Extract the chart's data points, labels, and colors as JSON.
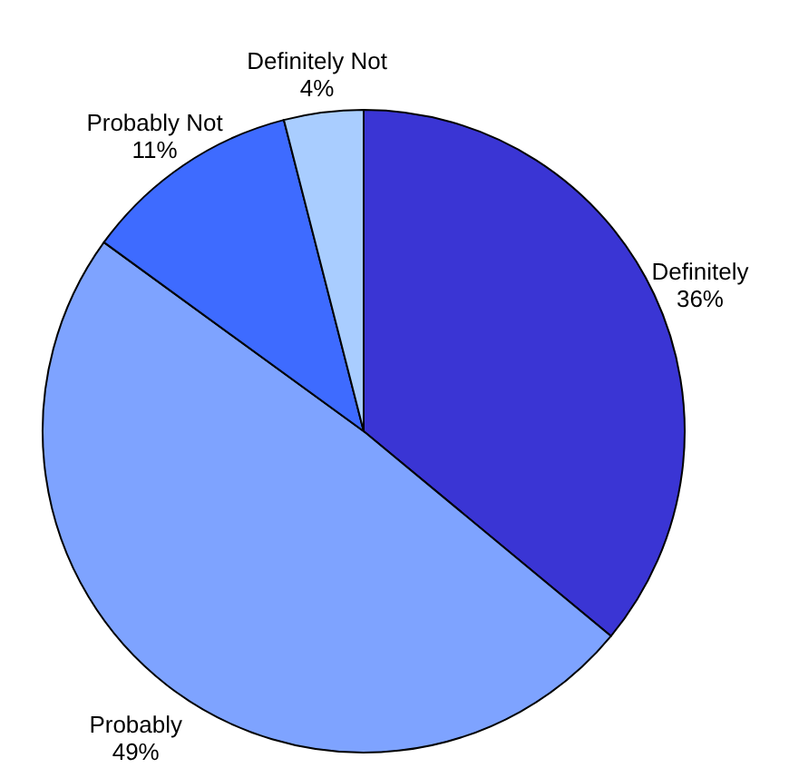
{
  "chart_data": {
    "type": "pie",
    "categories": [
      "Definitely",
      "Probably",
      "Probably Not",
      "Definitely Not"
    ],
    "values": [
      36,
      49,
      11,
      4
    ],
    "colors": [
      "#3a35d4",
      "#7ea3ff",
      "#3e6bff",
      "#a9cdff"
    ],
    "value_labels": [
      "36%",
      "49%",
      "11%",
      "4%"
    ],
    "legend": false
  }
}
